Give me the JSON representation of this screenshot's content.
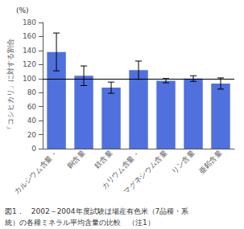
{
  "chart_data": {
    "type": "bar",
    "categories": [
      "カルシウム含量・",
      "銅含量",
      "鉄含量",
      "カリウム含量・",
      "マグネシウム含量",
      "リン含量",
      "亜鉛含量"
    ],
    "values": [
      138,
      104,
      87,
      112,
      97,
      100,
      93
    ],
    "errors": [
      27,
      14,
      8,
      13,
      3,
      4,
      8
    ],
    "reference_line": 100,
    "ylabel": "「コシヒカリ」に対する割合",
    "annotation": "(%)",
    "caption": [
      "図1．　2002～2004年度試験ほ場産有色米（7品種・系",
      "統）の各種ミネラル平均含量の比較　（注1）"
    ],
    "ylim": [
      0,
      180
    ],
    "yticks": [
      0,
      20,
      40,
      60,
      80,
      100,
      120,
      140,
      160,
      180
    ],
    "grid": false
  }
}
